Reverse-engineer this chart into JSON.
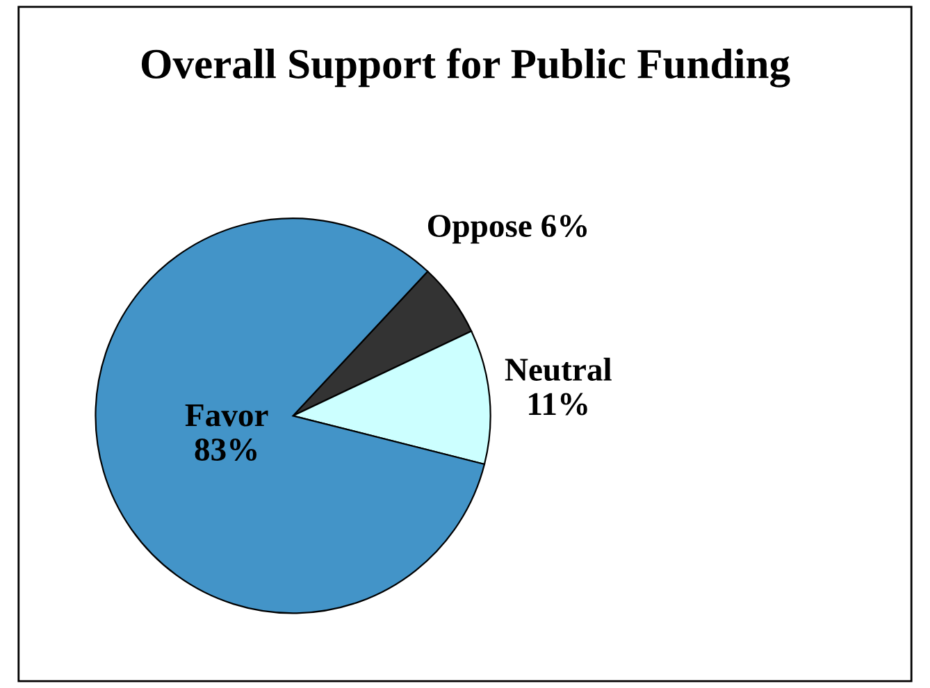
{
  "chart_data": {
    "type": "pie",
    "title": "Overall Support for Public Funding",
    "categories": [
      "Oppose",
      "Neutral",
      "Favor"
    ],
    "values": [
      6,
      11,
      83
    ],
    "value_labels": [
      "6%",
      "11%",
      "83%"
    ],
    "colors": [
      "#333333",
      "#ccffff",
      "#4394c8"
    ]
  }
}
